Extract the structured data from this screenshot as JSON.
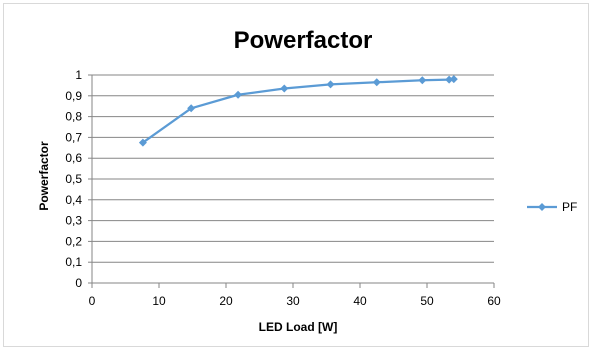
{
  "chart_data": {
    "type": "scatter",
    "title": "Powerfactor",
    "xlabel": "LED Load [W]",
    "ylabel": "Powerfactor",
    "xlim": [
      0,
      60
    ],
    "ylim": [
      0,
      1
    ],
    "x_ticks": [
      "0",
      "10",
      "20",
      "30",
      "40",
      "50",
      "60"
    ],
    "y_ticks": [
      "0",
      "0,1",
      "0,2",
      "0,3",
      "0,4",
      "0,5",
      "0,6",
      "0,7",
      "0,8",
      "0,9",
      "1"
    ],
    "grid": "horizontal",
    "legend_position": "right",
    "line_color": "#5b9bd5",
    "series": [
      {
        "name": "PF",
        "points": [
          {
            "x": 7.6,
            "y": 0.675
          },
          {
            "x": 14.8,
            "y": 0.84
          },
          {
            "x": 21.8,
            "y": 0.905
          },
          {
            "x": 28.7,
            "y": 0.935
          },
          {
            "x": 35.6,
            "y": 0.955
          },
          {
            "x": 42.5,
            "y": 0.965
          },
          {
            "x": 49.3,
            "y": 0.975
          },
          {
            "x": 53.3,
            "y": 0.978
          },
          {
            "x": 54.0,
            "y": 0.98
          }
        ]
      }
    ]
  }
}
